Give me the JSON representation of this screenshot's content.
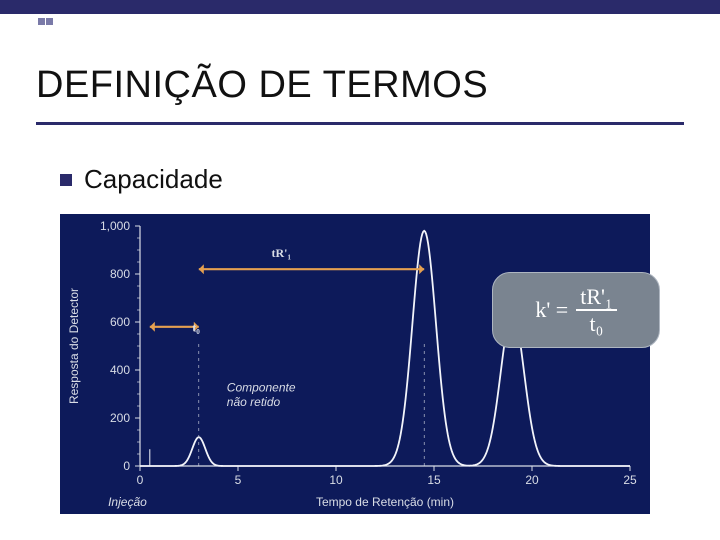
{
  "accent": {
    "bar_color": "#2a2a6a",
    "square_color": "#7a7aa8"
  },
  "title": "DEFINIÇÃO DE TERMOS",
  "bullet": "Capacidade",
  "chart": {
    "type": "line",
    "background_color": "#0d1a5a",
    "axis_color": "#d9dde6",
    "line_color": "#f2f4fa",
    "arrow_color": "#e5a050",
    "xlabel": "Tempo de Retenção (min)",
    "ylabel": "Resposta do Detector",
    "injection_label": "Injeção",
    "nonretained_label_1": "Componente",
    "nonretained_label_2": "não retido",
    "t0_label": "t₀",
    "tr1_label": "tR'₁",
    "xlim": [
      0,
      25
    ],
    "xtick_step": 5,
    "xticks": [
      0,
      5,
      10,
      15,
      20,
      25
    ],
    "ylim": [
      0,
      1000
    ],
    "ytick_step": 200,
    "yticks": [
      0,
      200,
      400,
      600,
      800,
      1000
    ],
    "t_injection": 0.5,
    "t0": 3.0,
    "tR1": 14.5,
    "tR2": 19.0,
    "peak0_height": 120,
    "peak1_height": 980,
    "peak2_height": 640,
    "peak_halfwidth": 0.6,
    "label_fontsize": 12,
    "tick_fontsize": 11,
    "line_width": 1.8
  },
  "formula": {
    "lhs": "k' =",
    "num": "tR'₁",
    "den": "t₀",
    "box_bg": "#7a8490",
    "box_border": "#aeb6c1",
    "text_color": "#ffffff"
  }
}
